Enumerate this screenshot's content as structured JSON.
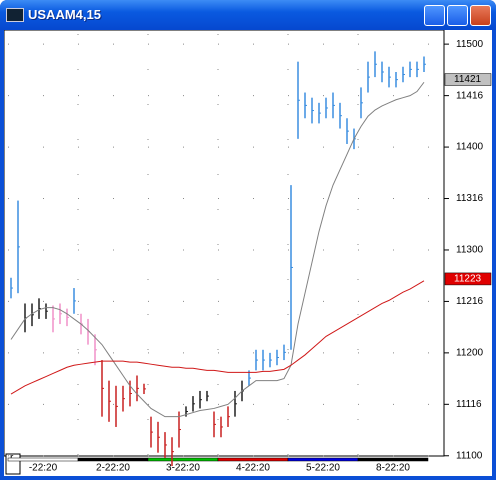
{
  "window": {
    "title": "USAAM4,15"
  },
  "chart_data": {
    "type": "ohlc",
    "categories": [
      "-22:20",
      "2-22:20",
      "3-22:20",
      "4-22:20",
      "5-22:20",
      "8-22:20"
    ],
    "category_colors": [
      "#ffffff",
      "#000000",
      "#00c000",
      "#e00000",
      "#0000e0",
      "#000000"
    ],
    "corner_label": "r",
    "ylim": [
      110.92,
      115.06
    ],
    "yticks": [
      {
        "value": 115.0,
        "label": "11500"
      },
      {
        "value": 114.5,
        "label": "11416"
      },
      {
        "value": 114.0,
        "label": "11400"
      },
      {
        "value": 113.5,
        "label": "11316"
      },
      {
        "value": 113.0,
        "label": "11300"
      },
      {
        "value": 112.5,
        "label": "11216"
      },
      {
        "value": 112.0,
        "label": "11200"
      },
      {
        "value": 111.5,
        "label": "11116"
      },
      {
        "value": 111.0,
        "label": "11100"
      }
    ],
    "grid": true,
    "segments": [
      {
        "color": "#3a8ee0",
        "high": [
          112.73,
          113.48
        ],
        "low": [
          112.53,
          112.58
        ]
      },
      {
        "color": "#202020",
        "high": [
          112.48,
          112.48,
          112.53,
          112.48
        ],
        "low": [
          112.2,
          112.26,
          112.33,
          112.33
        ]
      },
      {
        "color": "#f090c8",
        "high": [
          112.46,
          112.48,
          112.43
        ],
        "low": [
          112.2,
          112.28,
          112.26
        ]
      },
      {
        "color": "#3a8ee0",
        "high": [
          112.63
        ],
        "low": [
          112.38
        ]
      },
      {
        "color": "#f090c8",
        "high": [
          112.38,
          112.33,
          112.18
        ],
        "low": [
          112.18,
          112.08,
          111.88
        ]
      },
      {
        "color": "#c82020",
        "high": [
          111.93,
          111.73,
          111.68,
          111.68,
          111.73,
          111.78,
          111.7,
          111.38,
          111.33,
          111.23,
          111.18,
          111.43
        ],
        "low": [
          111.38,
          111.33,
          111.28,
          111.43,
          111.48,
          111.53,
          111.6,
          111.08,
          111.03,
          110.98,
          110.9,
          111.08
        ]
      },
      {
        "color": "#202020",
        "high": [
          111.48,
          111.58,
          111.63,
          111.63
        ],
        "low": [
          111.38,
          111.43,
          111.46,
          111.53
        ]
      },
      {
        "color": "#c82020",
        "high": [
          111.43,
          111.38,
          111.48
        ],
        "low": [
          111.18,
          111.18,
          111.28
        ]
      },
      {
        "color": "#202020",
        "high": [
          111.63,
          111.73
        ],
        "low": [
          111.38,
          111.53
        ]
      },
      {
        "color": "#3a8ee0",
        "high": [
          111.83,
          112.03,
          112.03,
          112.0,
          112.03,
          112.08,
          113.63,
          114.83,
          114.53,
          114.48,
          114.43,
          114.48,
          114.53,
          114.43,
          114.28,
          114.18,
          114.58,
          114.83,
          114.93,
          114.83,
          114.78,
          114.73,
          114.78,
          114.83,
          114.83,
          114.88
        ],
        "low": [
          111.68,
          111.83,
          111.83,
          111.86,
          111.88,
          111.93,
          112.03,
          114.08,
          114.28,
          114.23,
          114.23,
          114.28,
          114.28,
          114.18,
          114.03,
          113.98,
          114.28,
          114.53,
          114.68,
          114.63,
          114.58,
          114.58,
          114.63,
          114.68,
          114.68,
          114.73
        ]
      }
    ],
    "lines": [
      {
        "color": "#808080",
        "values": [
          112.13,
          112.23,
          112.33,
          112.38,
          112.42,
          112.44,
          112.44,
          112.42,
          112.38,
          112.33,
          112.28,
          112.22,
          112.15,
          112.08,
          111.98,
          111.88,
          111.78,
          111.68,
          111.6,
          111.53,
          111.46,
          111.42,
          111.38,
          111.38,
          111.38,
          111.4,
          111.42,
          111.44,
          111.45,
          111.46,
          111.48,
          111.5,
          111.56,
          111.63,
          111.68,
          111.73,
          111.73,
          111.73,
          111.73,
          111.75,
          111.88,
          112.28,
          112.58,
          112.88,
          113.18,
          113.43,
          113.63,
          113.78,
          113.93,
          114.08,
          114.2,
          114.3,
          114.36,
          114.4,
          114.43,
          114.46,
          114.48,
          114.5,
          114.54,
          114.63
        ]
      },
      {
        "color": "#d01818",
        "values": [
          111.6,
          111.64,
          111.68,
          111.71,
          111.74,
          111.77,
          111.8,
          111.83,
          111.86,
          111.88,
          111.89,
          111.9,
          111.91,
          111.92,
          111.92,
          111.92,
          111.92,
          111.91,
          111.91,
          111.9,
          111.89,
          111.88,
          111.87,
          111.86,
          111.86,
          111.85,
          111.85,
          111.84,
          111.83,
          111.83,
          111.82,
          111.81,
          111.81,
          111.81,
          111.81,
          111.81,
          111.82,
          111.82,
          111.83,
          111.84,
          111.88,
          111.93,
          111.98,
          112.04,
          112.1,
          112.16,
          112.2,
          112.24,
          112.28,
          112.32,
          112.36,
          112.4,
          112.44,
          112.48,
          112.51,
          112.55,
          112.59,
          112.62,
          112.66,
          112.7
        ]
      }
    ],
    "price_markers": [
      {
        "value": 114.65625,
        "label": "11421",
        "color": "#c0c0c0",
        "text_color": "#000000"
      },
      {
        "value": 112.71875,
        "label": "11223",
        "color": "#e00000",
        "text_color": "#ffffff"
      }
    ]
  }
}
